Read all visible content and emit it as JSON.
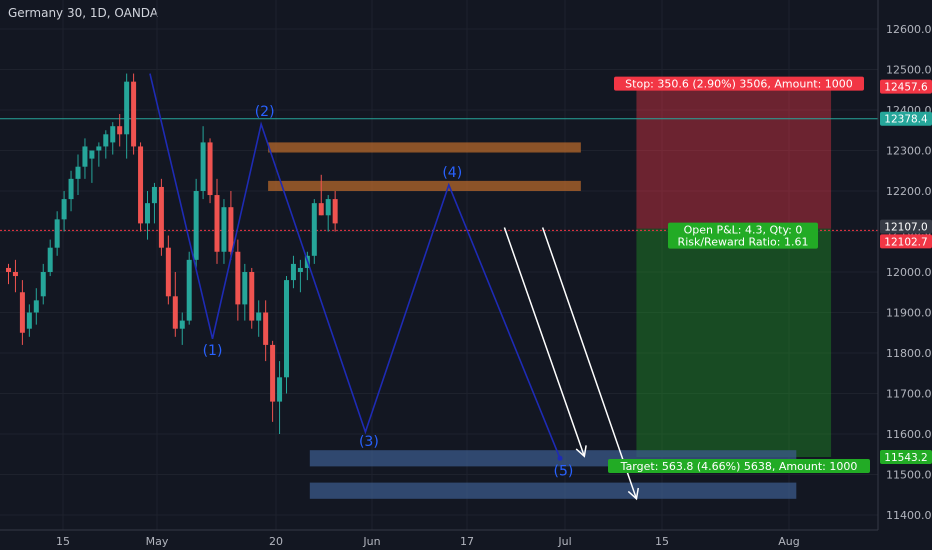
{
  "chart_title": "Germany 30, 1D, OANDA",
  "chart_data": {
    "type": "candlestick",
    "symbol": "Germany 30",
    "interval": "1D",
    "source": "OANDA",
    "y_ticks": [
      12600,
      12500,
      12400,
      12300,
      12200,
      12100,
      12000,
      11900,
      11800,
      11700,
      11600,
      11500,
      11400
    ],
    "y_tick_labels": [
      "12600.0",
      "12500.0",
      "12400.0",
      "12300.0",
      "12200.0",
      "12100.0",
      "12000.0",
      "11900.0",
      "11800.0",
      "11700.0",
      "11600.0",
      "11500.0",
      "11400.0"
    ],
    "ylim": [
      11370,
      12680
    ],
    "x_ticks": [
      "15",
      "May",
      "20",
      "Jun",
      "17",
      "Jul",
      "15",
      "Aug"
    ],
    "price_labels": [
      {
        "value": 12457.6,
        "label": "12457.6",
        "color": "#f23645"
      },
      {
        "value": 12378.4,
        "label": "12378.4",
        "color": "#26a69a"
      },
      {
        "value": 12107.0,
        "label": "12107.0",
        "color": "#363a45"
      },
      {
        "value": 12102.7,
        "label": "12102.7",
        "color": "#f23645"
      },
      {
        "value": 11543.2,
        "label": "11543.2",
        "color": "#22ab25"
      }
    ],
    "horizontal_lines": [
      {
        "value": 12378.4,
        "color": "#26a69a"
      },
      {
        "value": 12102.7,
        "color": "#f23645"
      }
    ],
    "candles": [
      [
        12010,
        12020,
        11970,
        12000
      ],
      [
        12000,
        12030,
        11950,
        11990
      ],
      [
        11950,
        11980,
        11820,
        11850
      ],
      [
        11860,
        11920,
        11840,
        11900
      ],
      [
        11900,
        11960,
        11870,
        11930
      ],
      [
        11940,
        12020,
        11920,
        12000
      ],
      [
        12000,
        12080,
        11990,
        12060
      ],
      [
        12060,
        12150,
        12040,
        12130
      ],
      [
        12130,
        12200,
        12100,
        12180
      ],
      [
        12180,
        12250,
        12150,
        12230
      ],
      [
        12230,
        12290,
        12190,
        12260
      ],
      [
        12260,
        12330,
        12230,
        12310
      ],
      [
        12280,
        12300,
        12220,
        12300
      ],
      [
        12300,
        12320,
        12260,
        12310
      ],
      [
        12310,
        12350,
        12280,
        12340
      ],
      [
        12320,
        12370,
        12290,
        12360
      ],
      [
        12360,
        12390,
        12310,
        12340
      ],
      [
        12340,
        12490,
        12280,
        12470
      ],
      [
        12470,
        12490,
        12290,
        12310
      ],
      [
        12310,
        12320,
        12100,
        12120
      ],
      [
        12120,
        12200,
        12080,
        12170
      ],
      [
        12170,
        12220,
        12120,
        12210
      ],
      [
        12210,
        12230,
        12040,
        12060
      ],
      [
        12060,
        12090,
        11920,
        11940
      ],
      [
        11940,
        12000,
        11840,
        11860
      ],
      [
        11860,
        11900,
        11820,
        11880
      ],
      [
        11880,
        12050,
        11870,
        12030
      ],
      [
        12030,
        12230,
        12010,
        12200
      ],
      [
        12200,
        12360,
        12180,
        12320
      ],
      [
        12320,
        12330,
        12170,
        12190
      ],
      [
        12190,
        12230,
        12020,
        12050
      ],
      [
        12050,
        12180,
        12020,
        12160
      ],
      [
        12160,
        12200,
        12030,
        12050
      ],
      [
        12050,
        12080,
        11880,
        11920
      ],
      [
        11920,
        12020,
        11880,
        12000
      ],
      [
        12000,
        12010,
        11860,
        11880
      ],
      [
        11880,
        11930,
        11840,
        11900
      ],
      [
        11900,
        11930,
        11780,
        11820
      ],
      [
        11820,
        11830,
        11630,
        11680
      ],
      [
        11680,
        11780,
        11600,
        11740
      ],
      [
        11740,
        11990,
        11700,
        11980
      ],
      [
        11980,
        12040,
        11960,
        12020
      ],
      [
        12000,
        12030,
        11950,
        12010
      ],
      [
        12010,
        12050,
        11980,
        12040
      ],
      [
        12040,
        12180,
        12020,
        12170
      ],
      [
        12170,
        12240,
        12140,
        12140
      ],
      [
        12140,
        12190,
        12100,
        12180
      ],
      [
        12180,
        12200,
        12100,
        12120
      ]
    ],
    "zones": [
      {
        "name": "orange-zone-upper",
        "from": 12295,
        "to": 12320,
        "start": 38,
        "end": 83,
        "color": "#b5682b"
      },
      {
        "name": "orange-zone-lower",
        "from": 12200,
        "to": 12225,
        "start": 38,
        "end": 83,
        "color": "#b5682b"
      },
      {
        "name": "blue-zone-upper",
        "from": 11520,
        "to": 11560,
        "start": 44,
        "end": 114,
        "color": "#3b5a8a"
      },
      {
        "name": "blue-zone-lower",
        "from": 11440,
        "to": 11480,
        "start": 44,
        "end": 114,
        "color": "#3b5a8a"
      }
    ],
    "wave": {
      "points": [
        [
          21,
          12490
        ],
        [
          30,
          11835
        ],
        [
          37,
          12365
        ],
        [
          52,
          11605
        ],
        [
          64,
          12215
        ],
        [
          80,
          11540
        ]
      ],
      "labels": [
        {
          "text": "(1)",
          "x": 30,
          "y": 11795
        },
        {
          "text": "(2)",
          "x": 37.5,
          "y": 12385
        },
        {
          "text": "(3)",
          "x": 52.5,
          "y": 11570
        },
        {
          "text": "(4)",
          "x": 64.5,
          "y": 12235
        },
        {
          "text": "(5)",
          "x": 80.5,
          "y": 11497
        }
      ],
      "color": "#1e2bb5"
    },
    "arrows": [
      {
        "from": [
          72,
          12110
        ],
        "to": [
          83.5,
          11545
        ]
      },
      {
        "from": [
          77.5,
          12110
        ],
        "to": [
          91,
          11440
        ]
      }
    ],
    "position": {
      "entry": 12107.0,
      "stop": 12457.6,
      "target": 11543.2,
      "start": 91,
      "end": 119,
      "stop_label": "Stop: 350.6 (2.90%) 3506, Amount: 1000",
      "target_label": "Target: 563.8 (4.66%) 5638, Amount: 1000",
      "pl_label_1": "Open P&L: 4.3, Qty: 0",
      "pl_label_2": "Risk/Reward Ratio: 1.61"
    }
  }
}
